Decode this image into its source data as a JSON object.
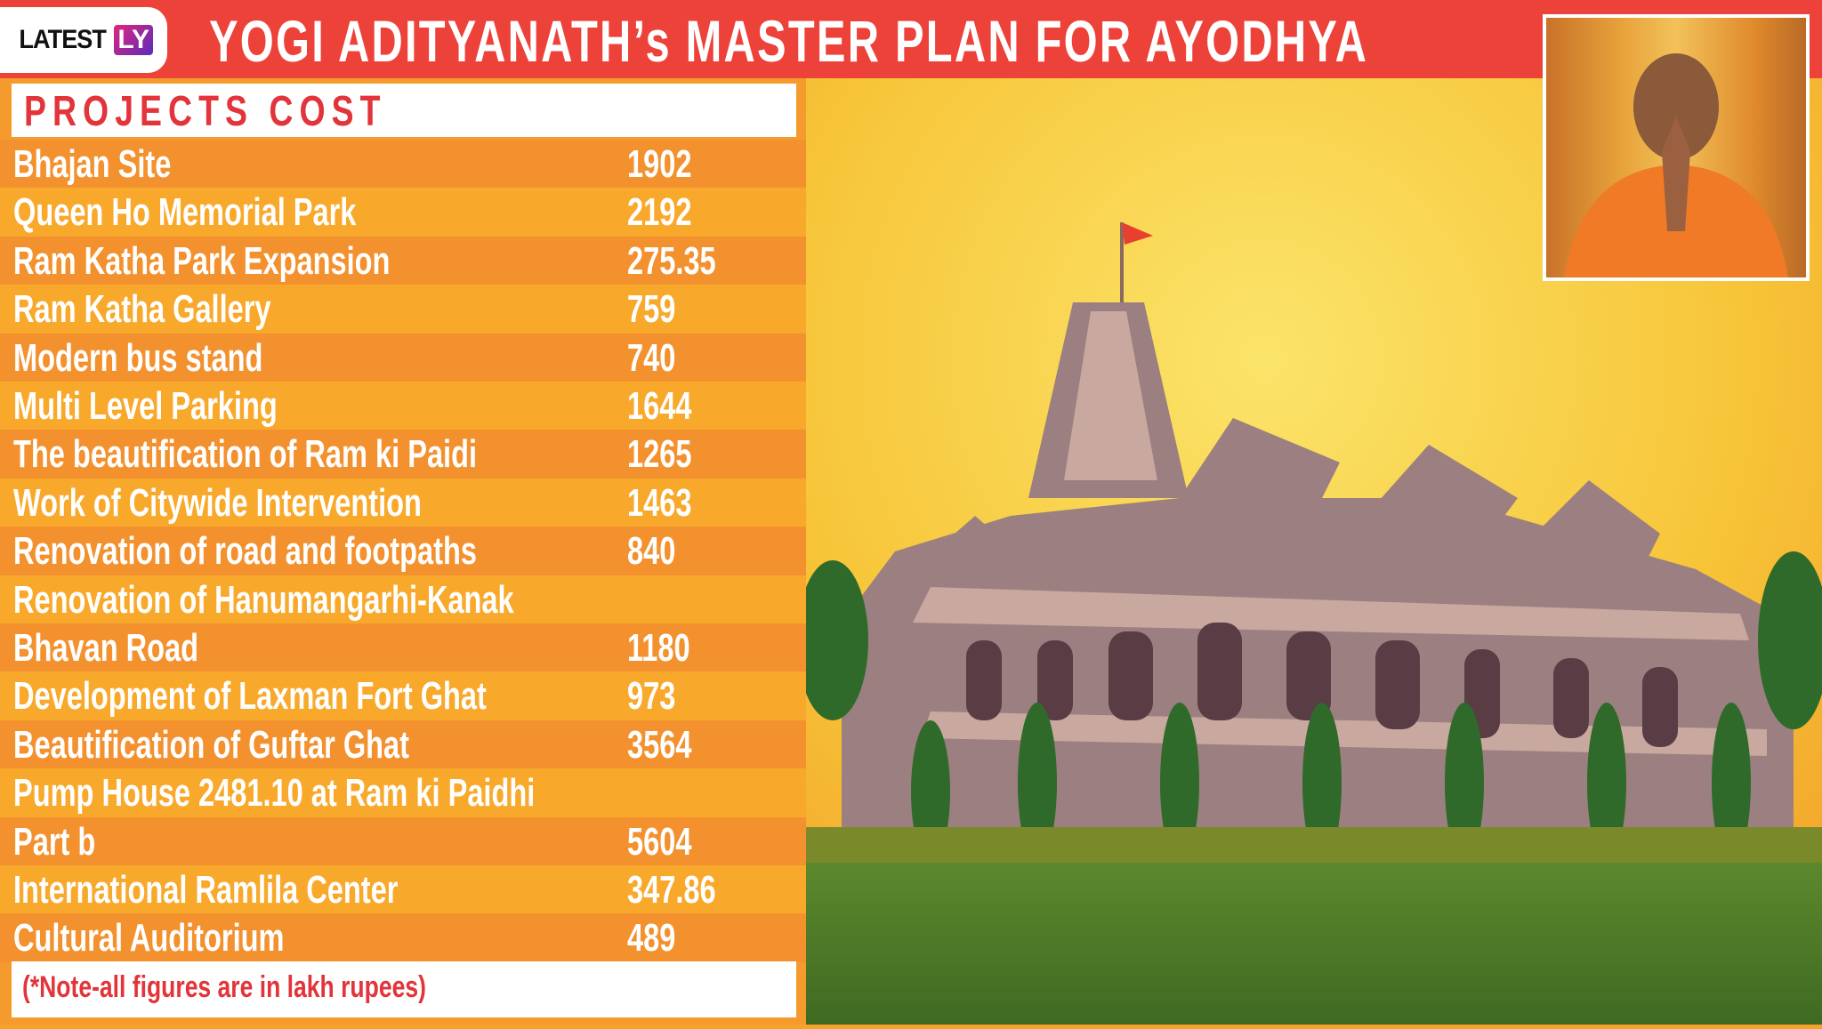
{
  "header": {
    "logo_text": "LATEST",
    "logo_badge": "LY",
    "title": "YOGI ADITYANATH’s MASTER PLAN FOR AYODHYA"
  },
  "table": {
    "heading": "PROJECTS COST",
    "rows": [
      {
        "name": "Bhajan Site",
        "value": "1902"
      },
      {
        "name": "Queen Ho Memorial Park",
        "value": "2192"
      },
      {
        "name": "Ram Katha Park Expansion",
        "value": "275.35"
      },
      {
        "name": "Ram Katha Gallery",
        "value": "759"
      },
      {
        "name": "Modern bus stand",
        "value": "740"
      },
      {
        "name": "Multi Level Parking",
        "value": "1644"
      },
      {
        "name": "The beautification of Ram ki Paidi",
        "value": "1265"
      },
      {
        "name": "Work of Citywide Intervention",
        "value": "1463"
      },
      {
        "name": "Renovation of road and footpaths",
        "value": "840"
      },
      {
        "name": "Renovation of Hanumangarhi-Kanak",
        "value": ""
      },
      {
        "name": "Bhavan Road",
        "value": "1180"
      },
      {
        "name": "Development of Laxman Fort Ghat",
        "value": "973"
      },
      {
        "name": "Beautification of Guftar Ghat",
        "value": "3564"
      },
      {
        "name": "Pump House 2481.10 at Ram ki Paidhi",
        "value": ""
      },
      {
        "name": "Part b",
        "value": "5604"
      },
      {
        "name": "International Ramlila Center",
        "value": "347.86"
      },
      {
        "name": "Cultural Auditorium",
        "value": "489"
      }
    ],
    "note": "(*Note-all figures are in lakh rupees)"
  },
  "colors": {
    "header_red": "#ec4239",
    "row_dark": "#f3912f",
    "row_light": "#f8a92b",
    "accent_text": "#e2343a"
  }
}
